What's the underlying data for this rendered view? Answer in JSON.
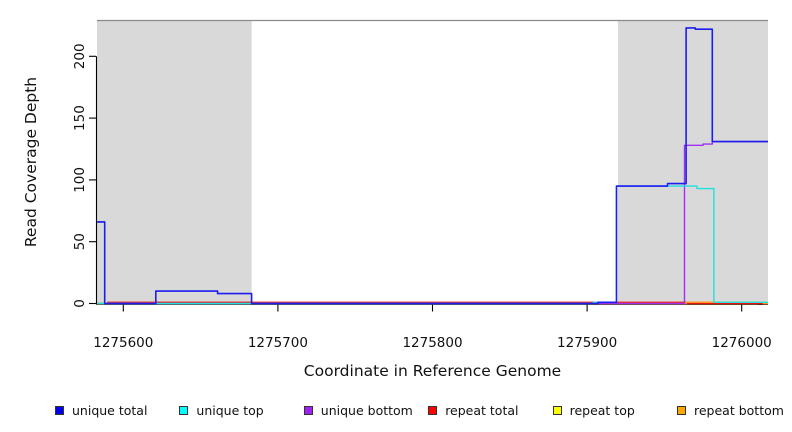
{
  "figure": {
    "background": "#ffffff",
    "shade_color": "#d9d9d9",
    "top_border_color": "#8a8a8a",
    "axis_color": "#000000"
  },
  "chart_data": {
    "type": "line",
    "step": "after",
    "title": "",
    "xlabel": "Coordinate in Reference Genome",
    "ylabel": "Read Coverage Depth",
    "xlim": [
      1275583,
      1276017
    ],
    "ylim": [
      0,
      229
    ],
    "grid": false,
    "legend_position": "bottom",
    "x_tick_values": [
      1275600,
      1275700,
      1275800,
      1275900,
      1276000
    ],
    "x_tick_labels": [
      "1275600",
      "1275700",
      "1275800",
      "1275900",
      "1276000"
    ],
    "y_tick_values": [
      0,
      50,
      100,
      150,
      200
    ],
    "y_tick_labels": [
      "0",
      "50",
      "100",
      "150",
      "200"
    ],
    "shaded_regions": [
      {
        "x0": 1275583,
        "x1": 1275683
      },
      {
        "x0": 1275920,
        "x1": 1276017
      }
    ],
    "series": [
      {
        "name": "repeat top",
        "slug": "repeat-top",
        "color": "#f2f200",
        "width": 1.4,
        "points": [
          [
            1275583,
            0
          ],
          [
            1276010,
            1
          ],
          [
            1276017,
            1
          ]
        ]
      },
      {
        "name": "repeat total",
        "slug": "repeat-total",
        "color": "#ee1111",
        "width": 1.4,
        "points": [
          [
            1275583,
            0
          ],
          [
            1275590,
            1
          ],
          [
            1275964,
            0
          ],
          [
            1276017,
            0
          ]
        ]
      },
      {
        "name": "repeat bottom",
        "slug": "repeat-bottom",
        "color": "#ff9a1e",
        "width": 1.5,
        "points": [
          [
            1275583,
            0
          ],
          [
            1275964,
            1
          ],
          [
            1276014,
            0
          ],
          [
            1276017,
            0
          ]
        ]
      },
      {
        "name": "unique bottom",
        "slug": "unique-bottom",
        "color": "#a030f0",
        "width": 1.4,
        "points": [
          [
            1275583,
            66
          ],
          [
            1275588,
            0
          ],
          [
            1275963,
            128
          ],
          [
            1275975,
            129
          ],
          [
            1275981,
            131
          ],
          [
            1276017,
            131
          ]
        ]
      },
      {
        "name": "unique top",
        "slug": "unique-top",
        "color": "#20e0e0",
        "width": 1.4,
        "points": [
          [
            1275583,
            0
          ],
          [
            1275904,
            1
          ],
          [
            1275919,
            95
          ],
          [
            1275964,
            95
          ],
          [
            1275971,
            93
          ],
          [
            1275982,
            1
          ],
          [
            1276017,
            1
          ]
        ]
      },
      {
        "name": "unique total",
        "slug": "unique-total",
        "color": "#1d1dee",
        "width": 1.6,
        "points": [
          [
            1275583,
            66
          ],
          [
            1275588,
            0
          ],
          [
            1275621,
            10
          ],
          [
            1275661,
            8
          ],
          [
            1275683,
            0
          ],
          [
            1275907,
            1
          ],
          [
            1275919,
            95
          ],
          [
            1275952,
            97
          ],
          [
            1275964,
            223
          ],
          [
            1275970,
            222
          ],
          [
            1275981,
            131
          ],
          [
            1276017,
            131
          ]
        ]
      }
    ]
  },
  "legend": {
    "items": [
      {
        "label": "unique total",
        "color": "#0000ee"
      },
      {
        "label": "unique top",
        "color": "#00ffff"
      },
      {
        "label": "unique bottom",
        "color": "#a020f0"
      },
      {
        "label": "repeat total",
        "color": "#ff0000"
      },
      {
        "label": "repeat top",
        "color": "#ffff00"
      },
      {
        "label": "repeat bottom",
        "color": "#ffa500"
      }
    ]
  }
}
